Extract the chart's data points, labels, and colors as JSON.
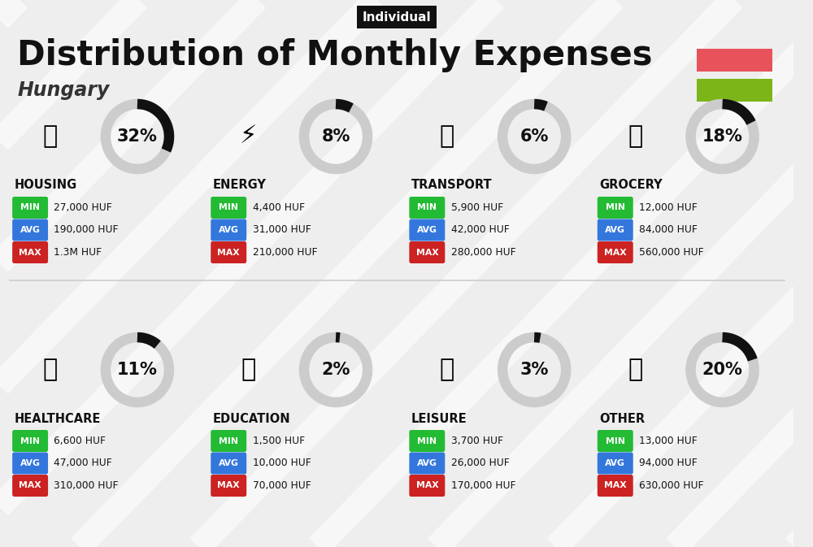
{
  "title": "Distribution of Monthly Expenses",
  "subtitle": "Hungary",
  "tag": "Individual",
  "bg_color": "#eeeeee",
  "flag_colors": [
    "#e8525a",
    "#7cb518"
  ],
  "categories": [
    {
      "name": "HOUSING",
      "pct": 32,
      "min": "27,000 HUF",
      "avg": "190,000 HUF",
      "max": "1.3M HUF",
      "row": 0,
      "col": 0
    },
    {
      "name": "ENERGY",
      "pct": 8,
      "min": "4,400 HUF",
      "avg": "31,000 HUF",
      "max": "210,000 HUF",
      "row": 0,
      "col": 1
    },
    {
      "name": "TRANSPORT",
      "pct": 6,
      "min": "5,900 HUF",
      "avg": "42,000 HUF",
      "max": "280,000 HUF",
      "row": 0,
      "col": 2
    },
    {
      "name": "GROCERY",
      "pct": 18,
      "min": "12,000 HUF",
      "avg": "84,000 HUF",
      "max": "560,000 HUF",
      "row": 0,
      "col": 3
    },
    {
      "name": "HEALTHCARE",
      "pct": 11,
      "min": "6,600 HUF",
      "avg": "47,000 HUF",
      "max": "310,000 HUF",
      "row": 1,
      "col": 0
    },
    {
      "name": "EDUCATION",
      "pct": 2,
      "min": "1,500 HUF",
      "avg": "10,000 HUF",
      "max": "70,000 HUF",
      "row": 1,
      "col": 1
    },
    {
      "name": "LEISURE",
      "pct": 3,
      "min": "3,700 HUF",
      "avg": "26,000 HUF",
      "max": "170,000 HUF",
      "row": 1,
      "col": 2
    },
    {
      "name": "OTHER",
      "pct": 20,
      "min": "13,000 HUF",
      "avg": "94,000 HUF",
      "max": "630,000 HUF",
      "row": 1,
      "col": 3
    }
  ],
  "min_color": "#22bb33",
  "avg_color": "#3377dd",
  "max_color": "#cc2222",
  "donut_bg": "#cccccc",
  "donut_fg": "#111111",
  "title_fontsize": 30,
  "subtitle_fontsize": 17,
  "tag_fontsize": 11,
  "cat_fontsize": 10.5,
  "val_fontsize": 9,
  "pct_fontsize": 15
}
